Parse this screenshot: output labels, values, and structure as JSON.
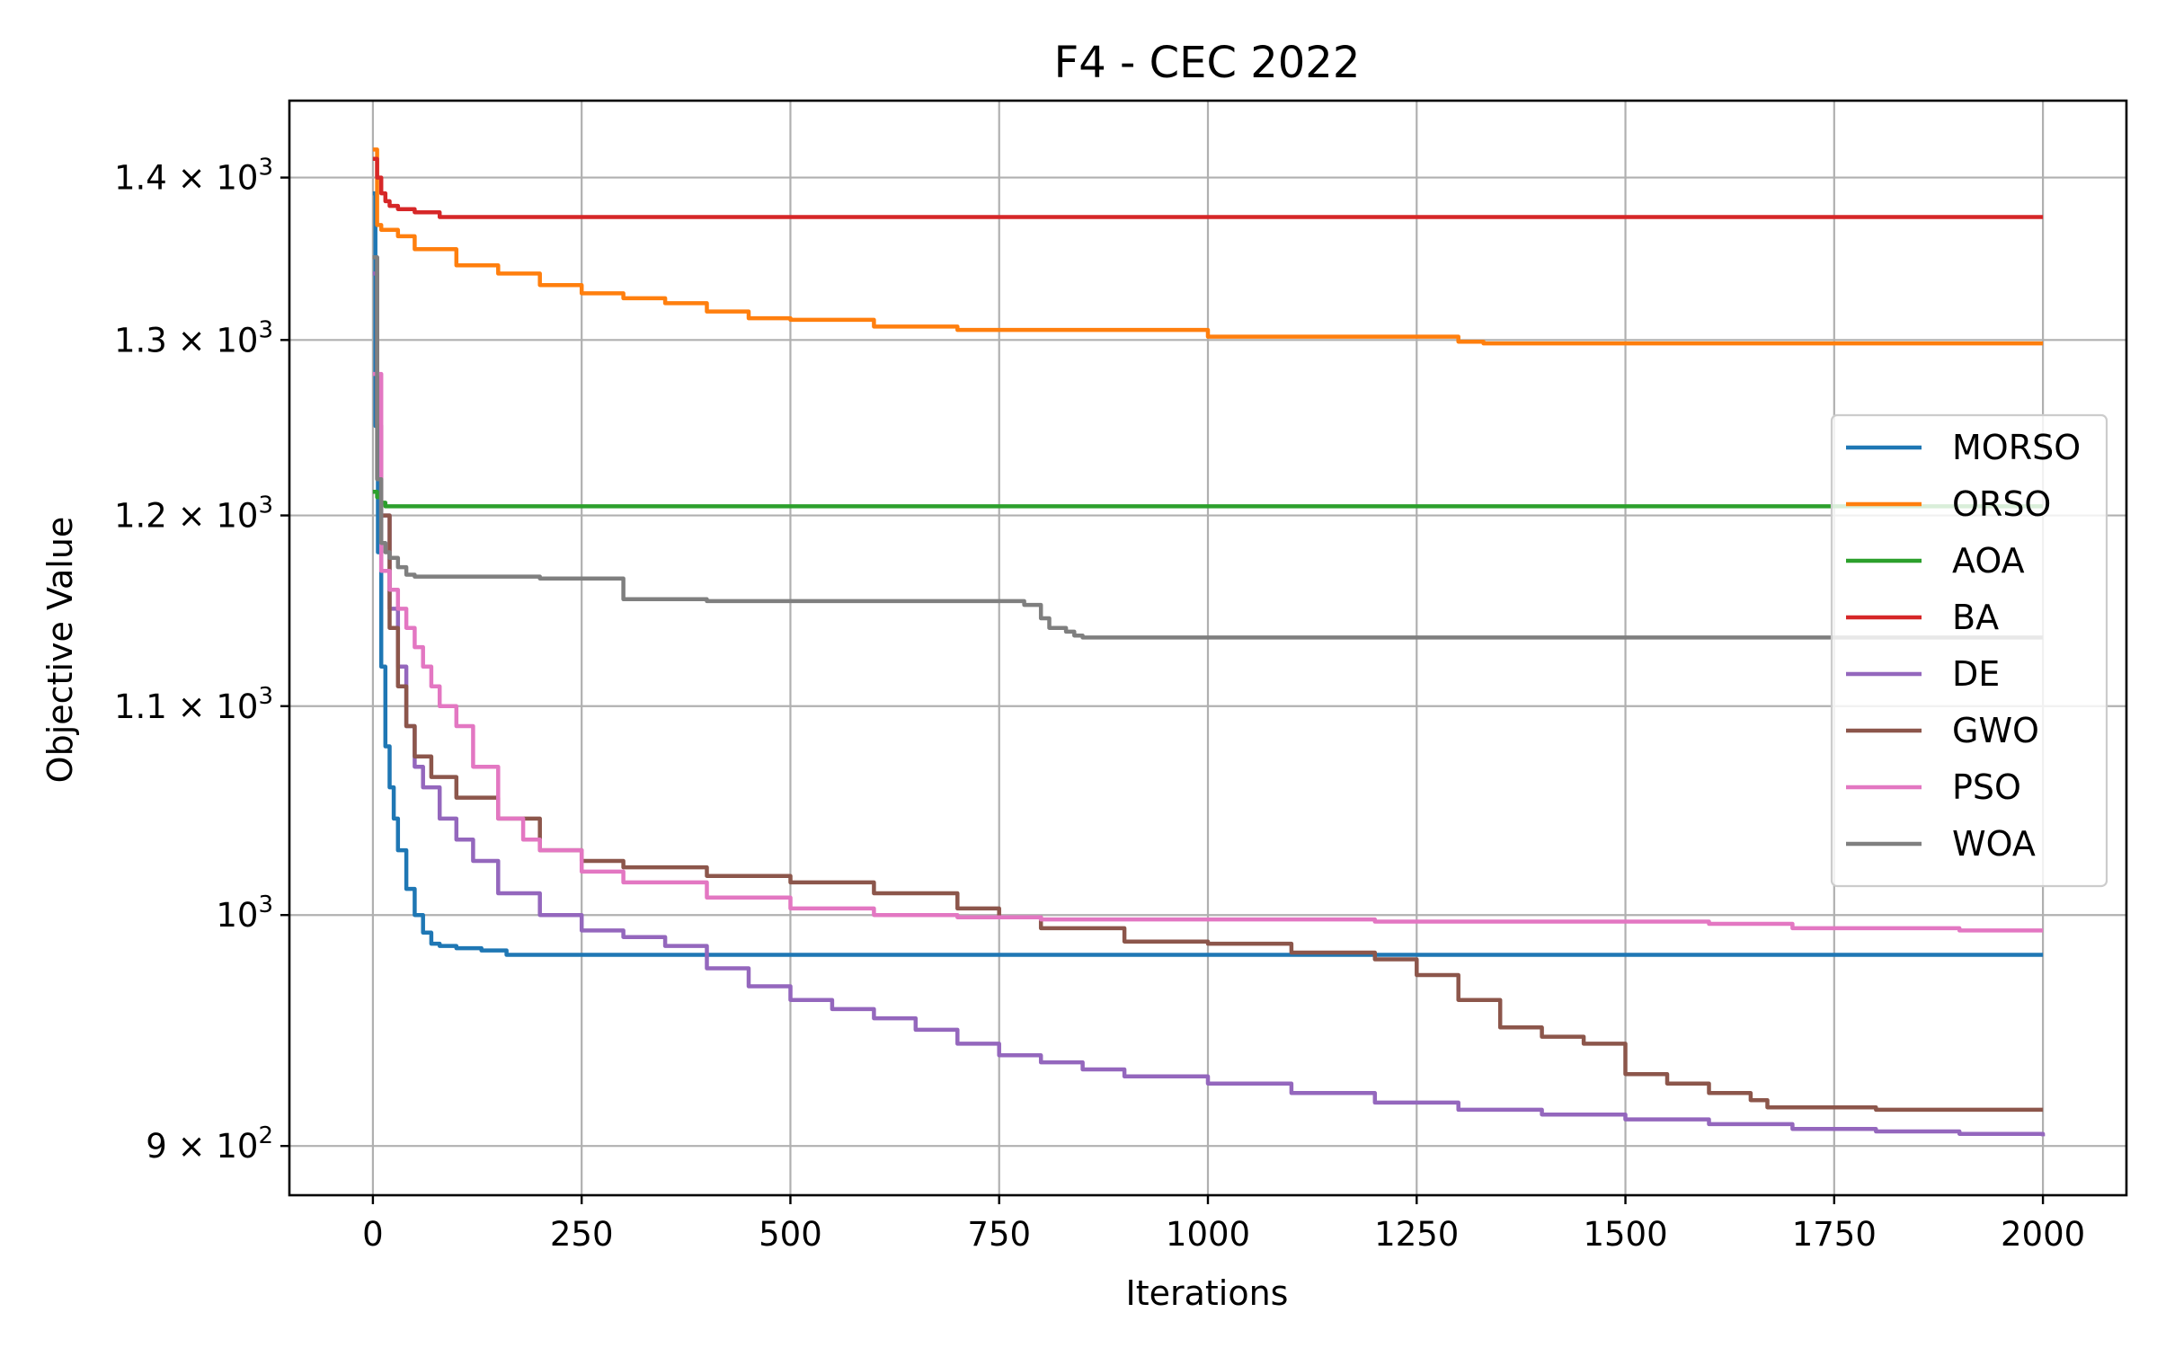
{
  "chart_data": {
    "type": "line",
    "title": "F4 - CEC 2022",
    "xlabel": "Iterations",
    "ylabel": "Objective Value",
    "xlim": [
      -100,
      2100
    ],
    "ylim": [
      880,
      1450
    ],
    "yscale": "log",
    "grid": true,
    "legend_position": "center-right",
    "x_ticks": [
      0,
      250,
      500,
      750,
      1000,
      1250,
      1500,
      1750,
      2000
    ],
    "x_tick_labels": [
      "0",
      "250",
      "500",
      "750",
      "1000",
      "1250",
      "1500",
      "1750",
      "2000"
    ],
    "y_ticks": [
      {
        "value": 900,
        "mantissa": "9",
        "exponent": "2"
      },
      {
        "value": 1000,
        "mantissa": "",
        "exponent": "3"
      },
      {
        "value": 1100,
        "mantissa": "1.1",
        "exponent": "3"
      },
      {
        "value": 1200,
        "mantissa": "1.2",
        "exponent": "3"
      },
      {
        "value": 1300,
        "mantissa": "1.3",
        "exponent": "3"
      },
      {
        "value": 1400,
        "mantissa": "1.4",
        "exponent": "3"
      }
    ],
    "series": [
      {
        "name": "MORSO",
        "color": "#1f77b4",
        "x": [
          0,
          3,
          6,
          10,
          15,
          20,
          25,
          30,
          40,
          50,
          60,
          70,
          80,
          100,
          130,
          160,
          200,
          500,
          1000,
          1500,
          2000
        ],
        "y": [
          1390,
          1250,
          1180,
          1120,
          1080,
          1060,
          1045,
          1030,
          1012,
          1000,
          992,
          987,
          986,
          985,
          984,
          982,
          982,
          982,
          982,
          982,
          982
        ]
      },
      {
        "name": "ORSO",
        "color": "#ff7f0e",
        "x": [
          0,
          5,
          10,
          30,
          50,
          100,
          150,
          200,
          250,
          300,
          350,
          400,
          450,
          500,
          600,
          700,
          800,
          900,
          1000,
          1100,
          1200,
          1300,
          1330,
          1500,
          1700,
          1900,
          2000
        ],
        "y": [
          1418,
          1370,
          1367,
          1363,
          1355,
          1345,
          1340,
          1333,
          1328,
          1325,
          1322,
          1317,
          1313,
          1312,
          1308,
          1306,
          1306,
          1306,
          1302,
          1302,
          1302,
          1299,
          1298,
          1298,
          1298,
          1298,
          1298
        ]
      },
      {
        "name": "AOA",
        "color": "#2ca02c",
        "x": [
          0,
          5,
          10,
          15,
          2000
        ],
        "y": [
          1213,
          1210,
          1207,
          1205,
          1205
        ]
      },
      {
        "name": "BA",
        "color": "#d62728",
        "x": [
          0,
          5,
          10,
          15,
          20,
          30,
          50,
          80,
          100,
          500,
          1000,
          1500,
          2000
        ],
        "y": [
          1412,
          1400,
          1390,
          1385,
          1382,
          1380,
          1378,
          1375,
          1375,
          1375,
          1375,
          1375,
          1375
        ]
      },
      {
        "name": "DE",
        "color": "#9467bd",
        "x": [
          0,
          5,
          10,
          20,
          30,
          40,
          50,
          60,
          80,
          100,
          120,
          150,
          200,
          250,
          300,
          350,
          400,
          450,
          500,
          550,
          600,
          650,
          700,
          750,
          800,
          850,
          900,
          1000,
          1100,
          1200,
          1300,
          1400,
          1500,
          1600,
          1700,
          1800,
          1900,
          2000
        ],
        "y": [
          1340,
          1250,
          1200,
          1150,
          1120,
          1090,
          1070,
          1060,
          1045,
          1035,
          1025,
          1010,
          1000,
          993,
          990,
          986,
          976,
          968,
          962,
          958,
          954,
          949,
          943,
          938,
          935,
          932,
          929,
          926,
          922,
          918,
          915,
          913,
          911,
          909,
          907,
          906,
          905,
          904
        ]
      },
      {
        "name": "GWO",
        "color": "#8c564b",
        "x": [
          0,
          5,
          10,
          20,
          30,
          40,
          50,
          70,
          100,
          150,
          200,
          250,
          300,
          400,
          500,
          600,
          700,
          750,
          800,
          900,
          1000,
          1100,
          1200,
          1250,
          1300,
          1350,
          1400,
          1450,
          1500,
          1550,
          1600,
          1650,
          1670,
          1700,
          1800,
          1900,
          2000
        ],
        "y": [
          1350,
          1250,
          1200,
          1140,
          1110,
          1090,
          1075,
          1065,
          1055,
          1045,
          1030,
          1025,
          1022,
          1018,
          1015,
          1010,
          1003,
          999,
          994,
          988,
          987,
          983,
          980,
          973,
          962,
          950,
          946,
          943,
          930,
          926,
          922,
          919,
          916,
          916,
          915,
          915,
          915
        ]
      },
      {
        "name": "PSO",
        "color": "#e377c2",
        "x": [
          0,
          10,
          20,
          30,
          40,
          50,
          60,
          70,
          80,
          100,
          120,
          150,
          180,
          200,
          250,
          300,
          400,
          500,
          600,
          700,
          800,
          900,
          1000,
          1200,
          1400,
          1600,
          1700,
          1800,
          1900,
          2000
        ],
        "y": [
          1280,
          1170,
          1160,
          1150,
          1140,
          1130,
          1120,
          1110,
          1100,
          1090,
          1070,
          1045,
          1035,
          1030,
          1020,
          1015,
          1008,
          1003,
          1000,
          999,
          998,
          998,
          998,
          997,
          997,
          996,
          994,
          994,
          993,
          993
        ]
      },
      {
        "name": "WOA",
        "color": "#7f7f7f",
        "x": [
          0,
          5,
          10,
          15,
          20,
          30,
          40,
          50,
          100,
          150,
          200,
          250,
          280,
          300,
          350,
          400,
          500,
          600,
          700,
          780,
          800,
          810,
          830,
          840,
          850,
          1000,
          1500,
          2000
        ],
        "y": [
          1350,
          1220,
          1185,
          1180,
          1177,
          1172,
          1168,
          1167,
          1167,
          1167,
          1166,
          1166,
          1166,
          1155,
          1155,
          1154,
          1154,
          1154,
          1154,
          1152,
          1145,
          1140,
          1138,
          1136,
          1135,
          1135,
          1135,
          1135
        ]
      }
    ]
  }
}
